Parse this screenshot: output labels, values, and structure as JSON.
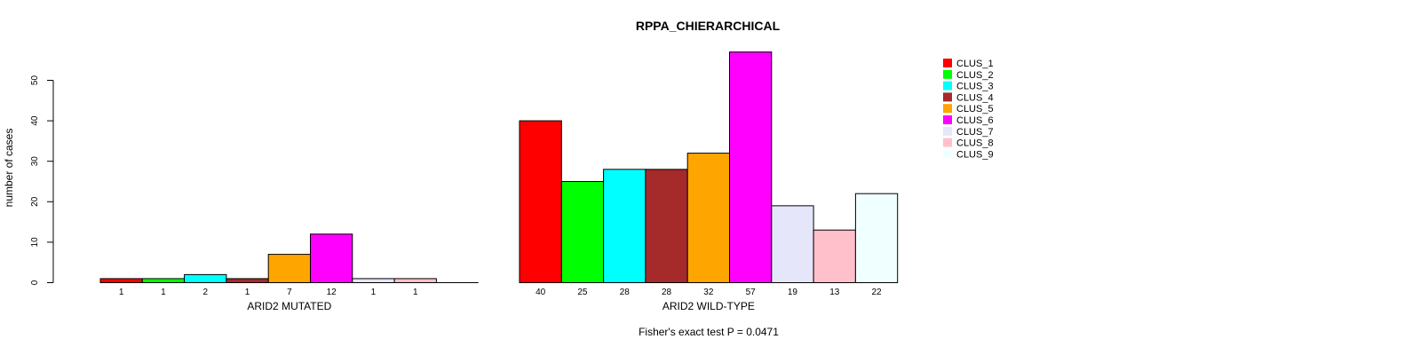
{
  "chart_data": {
    "type": "bar",
    "title": "RPPA_CHIERARCHICAL",
    "ylabel": "number of cases",
    "ylim": [
      0,
      50
    ],
    "yticks": [
      0,
      10,
      20,
      30,
      40,
      50
    ],
    "footnote": "Fisher's exact test P = 0.0471",
    "legend_position": "top-right",
    "series": [
      {
        "name": "CLUS_1",
        "color": "#ff0000"
      },
      {
        "name": "CLUS_2",
        "color": "#00ff00"
      },
      {
        "name": "CLUS_3",
        "color": "#00ffff"
      },
      {
        "name": "CLUS_4",
        "color": "#a52a2a"
      },
      {
        "name": "CLUS_5",
        "color": "#ffa500"
      },
      {
        "name": "CLUS_6",
        "color": "#ff00ff"
      },
      {
        "name": "CLUS_7",
        "color": "#e6e6fa"
      },
      {
        "name": "CLUS_8",
        "color": "#ffc0cb"
      },
      {
        "name": "CLUS_9",
        "color": "#f0ffff"
      }
    ],
    "groups": [
      {
        "label": "ARID2 MUTATED",
        "values": [
          1,
          1,
          2,
          1,
          7,
          12,
          1,
          1,
          0
        ],
        "bar_labels": [
          "1",
          "1",
          "2",
          "1",
          "7",
          "12",
          "1",
          "1",
          ""
        ]
      },
      {
        "label": "ARID2 WILD-TYPE",
        "values": [
          40,
          25,
          28,
          28,
          32,
          57,
          19,
          13,
          22
        ],
        "bar_labels": [
          "40",
          "25",
          "28",
          "28",
          "32",
          "57",
          "19",
          "13",
          "22"
        ]
      }
    ]
  }
}
